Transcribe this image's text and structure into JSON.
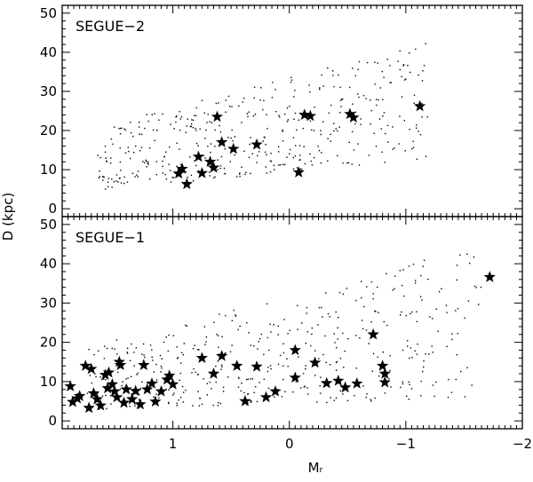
{
  "chart_data": [
    {
      "type": "scatter",
      "panel_label": "SEGUE−2",
      "xlabel": "",
      "ylabel": "",
      "xlim": [
        1.95,
        -2.0
      ],
      "ylim": [
        -2,
        52
      ],
      "x_ticks": [
        {
          "v": 1,
          "label": "1"
        },
        {
          "v": 0,
          "label": "0"
        },
        {
          "v": -1,
          "label": "−1"
        },
        {
          "v": -2,
          "label": "−2"
        }
      ],
      "y_ticks": [
        {
          "v": 0,
          "label": "0"
        },
        {
          "v": 10,
          "label": "10"
        },
        {
          "v": 20,
          "label": "20"
        },
        {
          "v": 30,
          "label": "30"
        },
        {
          "v": 40,
          "label": "40"
        },
        {
          "v": 50,
          "label": "50"
        }
      ],
      "stars": [
        [
          0.95,
          9.0
        ],
        [
          0.92,
          10.2
        ],
        [
          0.88,
          6.3
        ],
        [
          0.78,
          13.3
        ],
        [
          0.75,
          9.1
        ],
        [
          0.68,
          12.0
        ],
        [
          0.65,
          10.5
        ],
        [
          0.62,
          23.5
        ],
        [
          0.58,
          17.0
        ],
        [
          0.48,
          15.3
        ],
        [
          0.28,
          16.4
        ],
        [
          -0.08,
          9.3
        ],
        [
          -0.18,
          23.7
        ],
        [
          -0.13,
          24.0
        ],
        [
          -0.52,
          24.2
        ],
        [
          -0.55,
          23.3
        ],
        [
          -1.12,
          26.2
        ]
      ],
      "field_dots": {
        "count": 420,
        "seed": 7,
        "x_range": [
          1.65,
          -1.2
        ],
        "y_at_bright_end": [
          5,
          21
        ],
        "y_at_faint_end": [
          13,
          43
        ]
      }
    },
    {
      "type": "scatter",
      "panel_label": "SEGUE−1",
      "xlabel": "Mᵣ",
      "ylabel": "D (kpc)",
      "xlim": [
        1.95,
        -2.0
      ],
      "ylim": [
        -2,
        52
      ],
      "x_ticks": [
        {
          "v": 1,
          "label": "1"
        },
        {
          "v": 0,
          "label": "0"
        },
        {
          "v": -1,
          "label": "−1"
        },
        {
          "v": -2,
          "label": "−2"
        }
      ],
      "y_ticks": [
        {
          "v": 0,
          "label": "0"
        },
        {
          "v": 10,
          "label": "10"
        },
        {
          "v": 20,
          "label": "20"
        },
        {
          "v": 30,
          "label": "30"
        },
        {
          "v": 40,
          "label": "40"
        },
        {
          "v": 50,
          "label": "50"
        }
      ],
      "stars": [
        [
          1.88,
          8.8
        ],
        [
          1.86,
          4.8
        ],
        [
          1.82,
          5.7
        ],
        [
          1.8,
          6.3
        ],
        [
          1.75,
          14.0
        ],
        [
          1.72,
          3.3
        ],
        [
          1.7,
          13.2
        ],
        [
          1.68,
          7.0
        ],
        [
          1.65,
          5.5
        ],
        [
          1.62,
          3.9
        ],
        [
          1.58,
          11.7
        ],
        [
          1.56,
          8.3
        ],
        [
          1.55,
          12.3
        ],
        [
          1.52,
          9.3
        ],
        [
          1.5,
          7.5
        ],
        [
          1.48,
          6.0
        ],
        [
          1.46,
          15.0
        ],
        [
          1.45,
          14.2
        ],
        [
          1.42,
          4.6
        ],
        [
          1.4,
          8.0
        ],
        [
          1.35,
          5.5
        ],
        [
          1.32,
          7.6
        ],
        [
          1.28,
          4.2
        ],
        [
          1.25,
          14.2
        ],
        [
          1.22,
          8.0
        ],
        [
          1.18,
          9.5
        ],
        [
          1.15,
          4.9
        ],
        [
          1.1,
          7.5
        ],
        [
          1.05,
          10.5
        ],
        [
          1.03,
          11.5
        ],
        [
          1.0,
          9.3
        ],
        [
          0.75,
          16.0
        ],
        [
          0.65,
          12.0
        ],
        [
          0.58,
          16.5
        ],
        [
          0.45,
          14.0
        ],
        [
          0.38,
          5.0
        ],
        [
          0.28,
          13.8
        ],
        [
          0.2,
          6.0
        ],
        [
          0.12,
          7.5
        ],
        [
          -0.05,
          11.0
        ],
        [
          -0.05,
          18.0
        ],
        [
          -0.22,
          14.8
        ],
        [
          -0.32,
          9.6
        ],
        [
          -0.42,
          10.2
        ],
        [
          -0.48,
          8.5
        ],
        [
          -0.58,
          9.5
        ],
        [
          -0.72,
          22.0
        ],
        [
          -0.8,
          14.0
        ],
        [
          -0.82,
          12.0
        ],
        [
          -0.82,
          9.8
        ],
        [
          -1.72,
          36.6
        ]
      ],
      "field_dots": {
        "count": 440,
        "seed": 19,
        "x_range": [
          1.75,
          -1.65
        ],
        "y_at_bright_end": [
          3,
          19
        ],
        "y_at_faint_end": [
          6,
          45
        ]
      }
    }
  ]
}
